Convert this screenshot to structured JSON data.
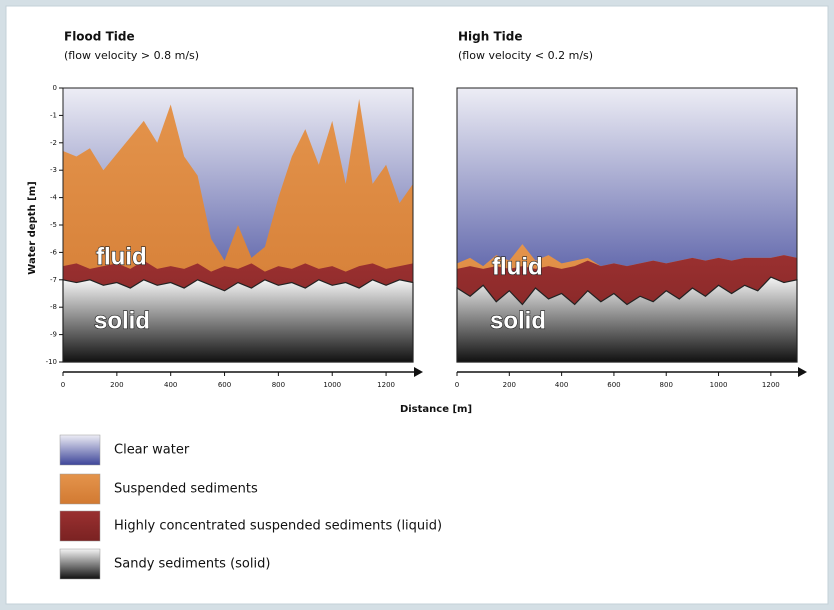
{
  "chart_data": [
    {
      "type": "layers",
      "title": "Flood Tide",
      "subtitle": "(flow velocity > 0.8 m/s)",
      "x": [
        0,
        50,
        100,
        150,
        200,
        250,
        300,
        350,
        400,
        450,
        500,
        550,
        600,
        650,
        700,
        750,
        800,
        850,
        900,
        950,
        1000,
        1050,
        1100,
        1150,
        1200,
        1250,
        1300
      ],
      "series": [
        {
          "color": [
            "#e4944c",
            "#d27a32"
          ],
          "values": [
            -2.3,
            -2.5,
            -2.2,
            -3.0,
            -2.4,
            -1.8,
            -1.2,
            -2.0,
            -0.6,
            -2.5,
            -3.2,
            -5.5,
            -6.3,
            -5.0,
            -6.2,
            -5.8,
            -4.0,
            -2.5,
            -1.5,
            -2.8,
            -1.2,
            -3.5,
            -0.4,
            -3.5,
            -2.8,
            -4.2,
            -3.5
          ]
        },
        {
          "color": [
            "#9a3030",
            "#7a2222"
          ],
          "values": [
            -6.5,
            -6.4,
            -6.6,
            -6.5,
            -6.4,
            -6.6,
            -6.3,
            -6.6,
            -6.5,
            -6.6,
            -6.4,
            -6.7,
            -6.5,
            -6.6,
            -6.4,
            -6.7,
            -6.5,
            -6.6,
            -6.4,
            -6.6,
            -6.5,
            -6.7,
            -6.5,
            -6.4,
            -6.6,
            -6.5,
            -6.4
          ]
        },
        {
          "color": [
            "#f4f4f4",
            "#111111"
          ],
          "values": [
            -7.0,
            -7.1,
            -7.0,
            -7.2,
            -7.1,
            -7.3,
            -7.0,
            -7.2,
            -7.1,
            -7.3,
            -7.0,
            -7.2,
            -7.4,
            -7.1,
            -7.3,
            -7.0,
            -7.2,
            -7.1,
            -7.3,
            -7.0,
            -7.2,
            -7.1,
            -7.3,
            -7.0,
            -7.2,
            -7.0,
            -7.1
          ]
        }
      ],
      "annotations": [
        "fluid",
        "solid"
      ],
      "xlim": [
        0,
        1300
      ],
      "xticks": [
        0,
        200,
        400,
        600,
        800,
        1000,
        1200
      ],
      "ylim": [
        -10,
        0
      ],
      "yticks": [
        0,
        -1,
        -2,
        -3,
        -4,
        -5,
        -6,
        -7,
        -8,
        -9,
        -10
      ]
    },
    {
      "type": "layers",
      "title": "High Tide",
      "subtitle": "(flow velocity < 0.2 m/s)",
      "x": [
        0,
        50,
        100,
        150,
        200,
        250,
        300,
        350,
        400,
        450,
        500,
        550,
        600,
        650,
        700,
        750,
        800,
        850,
        900,
        950,
        1000,
        1050,
        1100,
        1150,
        1200,
        1250,
        1300
      ],
      "series": [
        {
          "color": [
            "#e4944c",
            "#d27a32"
          ],
          "values": [
            -6.4,
            -6.2,
            -6.5,
            -6.1,
            -6.3,
            -5.7,
            -6.3,
            -6.1,
            -6.4,
            -6.3,
            -6.2,
            -6.5,
            -6.4,
            -6.5,
            -6.4,
            -6.3,
            -6.4,
            -6.3,
            -6.2,
            -6.3,
            -6.2,
            -6.3,
            -6.2,
            -6.2,
            -6.2,
            -6.1,
            -6.2
          ]
        },
        {
          "color": [
            "#9a3030",
            "#7a2222"
          ],
          "values": [
            -6.6,
            -6.5,
            -6.6,
            -6.5,
            -6.6,
            -6.5,
            -6.6,
            -6.5,
            -6.6,
            -6.5,
            -6.3,
            -6.5,
            -6.4,
            -6.5,
            -6.4,
            -6.3,
            -6.4,
            -6.3,
            -6.2,
            -6.3,
            -6.2,
            -6.3,
            -6.2,
            -6.2,
            -6.2,
            -6.1,
            -6.2
          ]
        },
        {
          "color": [
            "#f4f4f4",
            "#111111"
          ],
          "values": [
            -7.3,
            -7.6,
            -7.2,
            -7.8,
            -7.4,
            -7.9,
            -7.3,
            -7.7,
            -7.5,
            -7.9,
            -7.4,
            -7.8,
            -7.5,
            -7.9,
            -7.6,
            -7.8,
            -7.4,
            -7.7,
            -7.3,
            -7.6,
            -7.2,
            -7.5,
            -7.2,
            -7.4,
            -6.9,
            -7.1,
            -7.0
          ]
        }
      ],
      "annotations": [
        "fluid",
        "solid"
      ],
      "xlim": [
        0,
        1300
      ],
      "xticks": [
        0,
        200,
        400,
        600,
        800,
        1000,
        1200
      ],
      "ylim": [
        -10,
        0
      ]
    }
  ],
  "ylabel": "Water depth [m]",
  "xlabel": "Distance [m]",
  "background": [
    "#ededf5",
    "#3d4599"
  ],
  "legend": [
    {
      "label": "Clear water",
      "color": [
        "#ededf5",
        "#3d4599"
      ]
    },
    {
      "label": "Suspended sediments",
      "color": [
        "#e4944c",
        "#d27a32"
      ]
    },
    {
      "label": "Highly concentrated suspended sediments (liquid)",
      "color": [
        "#9a3030",
        "#7a2222"
      ]
    },
    {
      "label": "Sandy sediments (solid)",
      "color": [
        "#f4f4f4",
        "#111111"
      ]
    }
  ]
}
